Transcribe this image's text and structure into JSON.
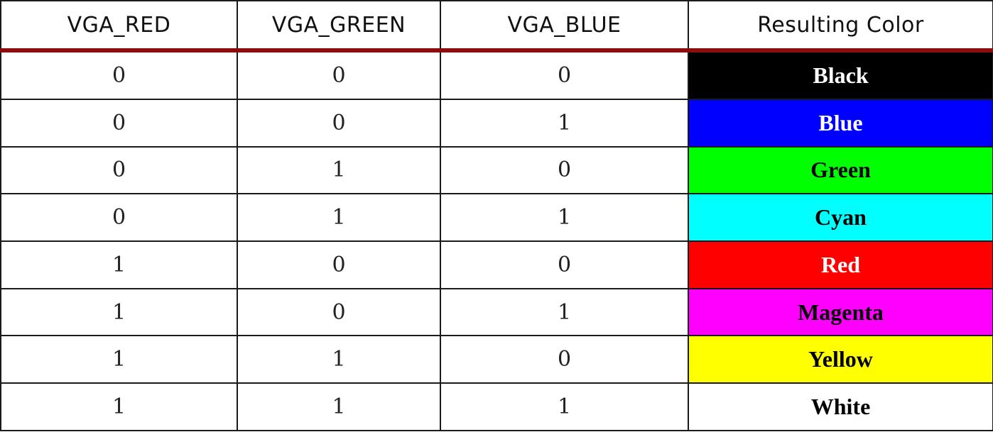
{
  "table": {
    "headers": [
      "VGA_RED",
      "VGA_GREEN",
      "VGA_BLUE",
      "Resulting Color"
    ],
    "rows": [
      {
        "red": "0",
        "green": "0",
        "blue": "0",
        "color": "Black",
        "bg": "#000000",
        "fg": "#ffffff"
      },
      {
        "red": "0",
        "green": "0",
        "blue": "1",
        "color": "Blue",
        "bg": "#0000ff",
        "fg": "#ffffff"
      },
      {
        "red": "0",
        "green": "1",
        "blue": "0",
        "color": "Green",
        "bg": "#00ff00",
        "fg": "#000000"
      },
      {
        "red": "0",
        "green": "1",
        "blue": "1",
        "color": "Cyan",
        "bg": "#00ffff",
        "fg": "#000000"
      },
      {
        "red": "1",
        "green": "0",
        "blue": "0",
        "color": "Red",
        "bg": "#ff0000",
        "fg": "#ffffff"
      },
      {
        "red": "1",
        "green": "0",
        "blue": "1",
        "color": "Magenta",
        "bg": "#ff00ff",
        "fg": "#000000"
      },
      {
        "red": "1",
        "green": "1",
        "blue": "0",
        "color": "Yellow",
        "bg": "#ffff00",
        "fg": "#000000"
      },
      {
        "red": "1",
        "green": "1",
        "blue": "1",
        "color": "White",
        "bg": "#ffffff",
        "fg": "#000000"
      }
    ]
  }
}
